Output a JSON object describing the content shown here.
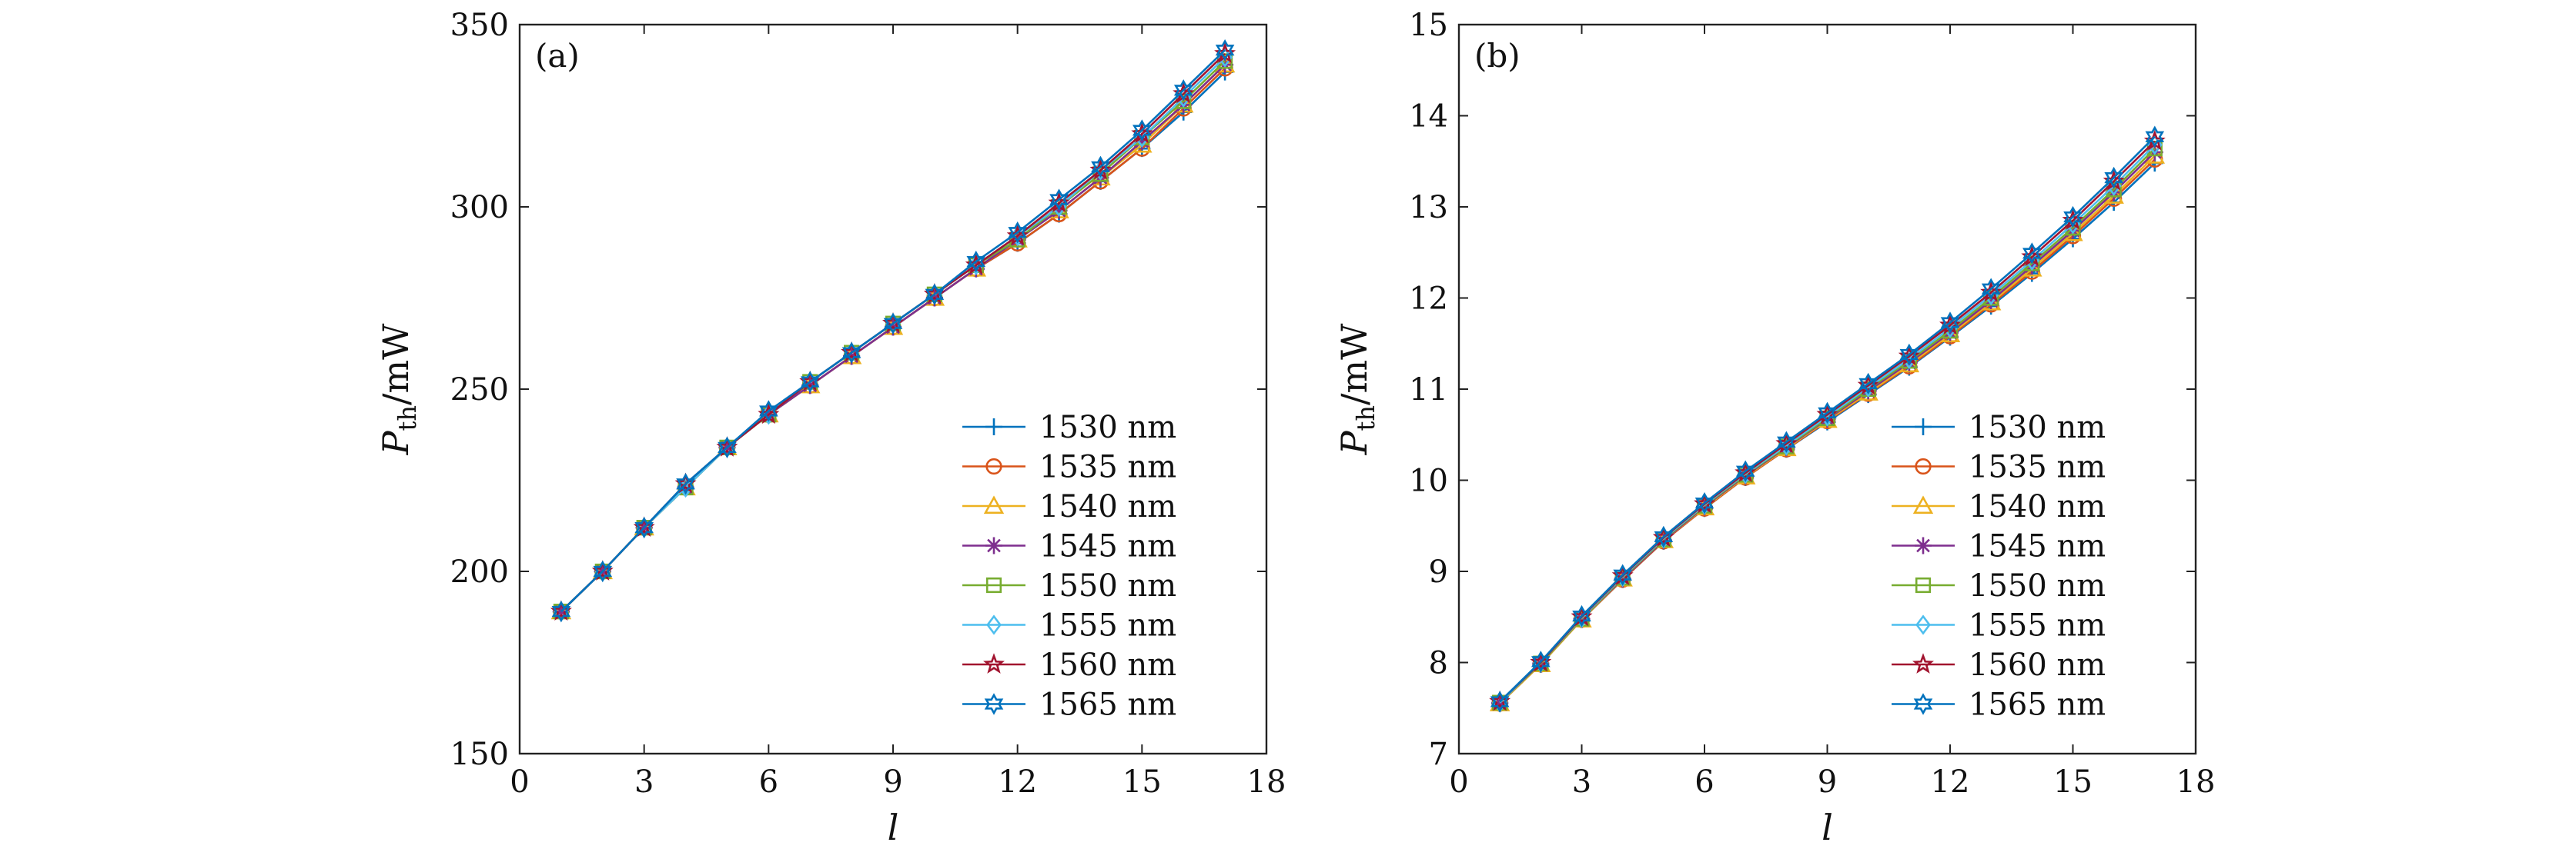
{
  "colors": {
    "1530 nm": "#0072bd",
    "1535 nm": "#d95319",
    "1540 nm": "#edb120",
    "1545 nm": "#7e2f8e",
    "1550 nm": "#77ac30",
    "1555 nm": "#4dbeee",
    "1560 nm": "#a2142f",
    "1565 nm": "#0072bd"
  },
  "chart_data": [
    {
      "type": "line",
      "panel_label": "(a)",
      "xlabel": "l",
      "ylabel_main": "P",
      "ylabel_sub": "th",
      "ylabel_unit": "/mW",
      "xlim": [
        0,
        18
      ],
      "ylim": [
        150,
        350
      ],
      "xticks": [
        "0",
        "3",
        "6",
        "9",
        "12",
        "15",
        "18"
      ],
      "yticks": [
        "150",
        "200",
        "250",
        "300",
        "350"
      ],
      "grid": false,
      "legend_position": "lower-right",
      "x": [
        1,
        2,
        3,
        4,
        5,
        6,
        7,
        8,
        9,
        10,
        11,
        12,
        13,
        14,
        15,
        16,
        17
      ],
      "series": [
        {
          "name": "1530 nm",
          "marker": "plus",
          "values": [
            189,
            200,
            212,
            223,
            234,
            243,
            251,
            259,
            267,
            275,
            283,
            290,
            298,
            307,
            316,
            326,
            337
          ]
        },
        {
          "name": "1535 nm",
          "marker": "circle",
          "values": [
            189,
            200,
            212,
            223,
            234,
            243,
            251,
            259,
            267,
            275,
            283,
            290,
            298,
            307,
            316,
            327,
            338
          ]
        },
        {
          "name": "1540 nm",
          "marker": "triangle",
          "values": [
            189,
            200,
            212,
            223,
            234,
            243,
            251,
            259,
            267,
            275,
            283,
            291,
            299,
            308,
            317,
            328,
            339
          ]
        },
        {
          "name": "1545 nm",
          "marker": "star",
          "values": [
            189,
            200,
            212,
            223,
            234,
            243,
            251,
            259,
            267,
            275,
            283,
            291,
            299,
            308,
            318,
            328,
            339
          ]
        },
        {
          "name": "1550 nm",
          "marker": "square",
          "values": [
            189,
            200,
            212,
            223,
            234,
            243,
            252,
            260,
            268,
            276,
            284,
            291,
            300,
            309,
            319,
            329,
            340
          ]
        },
        {
          "name": "1555 nm",
          "marker": "diamond",
          "values": [
            189,
            200,
            212,
            223,
            234,
            243,
            252,
            260,
            268,
            276,
            284,
            292,
            300,
            310,
            319,
            330,
            341
          ]
        },
        {
          "name": "1560 nm",
          "marker": "pentagram",
          "values": [
            189,
            200,
            212,
            224,
            234,
            243,
            252,
            260,
            268,
            276,
            284,
            292,
            301,
            310,
            320,
            331,
            342
          ]
        },
        {
          "name": "1565 nm",
          "marker": "hexagram",
          "values": [
            189,
            200,
            212,
            224,
            234,
            244,
            252,
            260,
            268,
            276,
            285,
            293,
            302,
            311,
            321,
            332,
            343
          ]
        }
      ]
    },
    {
      "type": "line",
      "panel_label": "(b)",
      "xlabel": "l",
      "ylabel_main": "P",
      "ylabel_sub": "th",
      "ylabel_unit": "/mW",
      "xlim": [
        0,
        18
      ],
      "ylim": [
        7,
        15
      ],
      "xticks": [
        "0",
        "3",
        "6",
        "9",
        "12",
        "15",
        "18"
      ],
      "yticks": [
        "7",
        "8",
        "9",
        "10",
        "11",
        "12",
        "13",
        "14",
        "15"
      ],
      "grid": false,
      "legend_position": "lower-right",
      "x": [
        1,
        2,
        3,
        4,
        5,
        6,
        7,
        8,
        9,
        10,
        11,
        12,
        13,
        14,
        15,
        16,
        17
      ],
      "series": [
        {
          "name": "1530 nm",
          "marker": "plus",
          "values": [
            7.55,
            7.98,
            8.47,
            8.91,
            9.33,
            9.69,
            10.03,
            10.34,
            10.64,
            10.94,
            11.24,
            11.57,
            11.91,
            12.27,
            12.65,
            13.05,
            13.48
          ]
        },
        {
          "name": "1535 nm",
          "marker": "circle",
          "values": [
            7.55,
            7.98,
            8.47,
            8.91,
            9.33,
            9.69,
            10.03,
            10.34,
            10.65,
            10.95,
            11.25,
            11.58,
            11.93,
            12.29,
            12.68,
            13.09,
            13.52
          ]
        },
        {
          "name": "1540 nm",
          "marker": "triangle",
          "values": [
            7.55,
            7.98,
            8.47,
            8.92,
            9.34,
            9.7,
            10.04,
            10.35,
            10.66,
            10.96,
            11.27,
            11.6,
            11.95,
            12.32,
            12.71,
            13.12,
            13.56
          ]
        },
        {
          "name": "1545 nm",
          "marker": "star",
          "values": [
            7.56,
            7.99,
            8.48,
            8.92,
            9.34,
            9.71,
            10.05,
            10.36,
            10.67,
            10.98,
            11.29,
            11.62,
            11.97,
            12.35,
            12.74,
            13.16,
            13.6
          ]
        },
        {
          "name": "1550 nm",
          "marker": "square",
          "values": [
            7.56,
            7.99,
            8.48,
            8.93,
            9.35,
            9.72,
            10.06,
            10.37,
            10.68,
            11.0,
            11.31,
            11.64,
            12.0,
            12.38,
            12.77,
            13.19,
            13.64
          ]
        },
        {
          "name": "1555 nm",
          "marker": "diamond",
          "values": [
            7.56,
            8.0,
            8.49,
            8.94,
            9.36,
            9.73,
            10.07,
            10.38,
            10.7,
            11.02,
            11.33,
            11.67,
            12.03,
            12.41,
            12.81,
            13.23,
            13.68
          ]
        },
        {
          "name": "1560 nm",
          "marker": "pentagram",
          "values": [
            7.57,
            8.0,
            8.5,
            8.95,
            9.37,
            9.74,
            10.08,
            10.4,
            10.72,
            11.04,
            11.36,
            11.7,
            12.06,
            12.45,
            12.85,
            13.28,
            13.72
          ]
        },
        {
          "name": "1565 nm",
          "marker": "hexagram",
          "values": [
            7.57,
            8.01,
            8.51,
            8.96,
            9.38,
            9.75,
            10.1,
            10.42,
            10.74,
            11.06,
            11.38,
            11.73,
            12.1,
            12.49,
            12.89,
            13.32,
            13.77
          ]
        }
      ]
    }
  ]
}
